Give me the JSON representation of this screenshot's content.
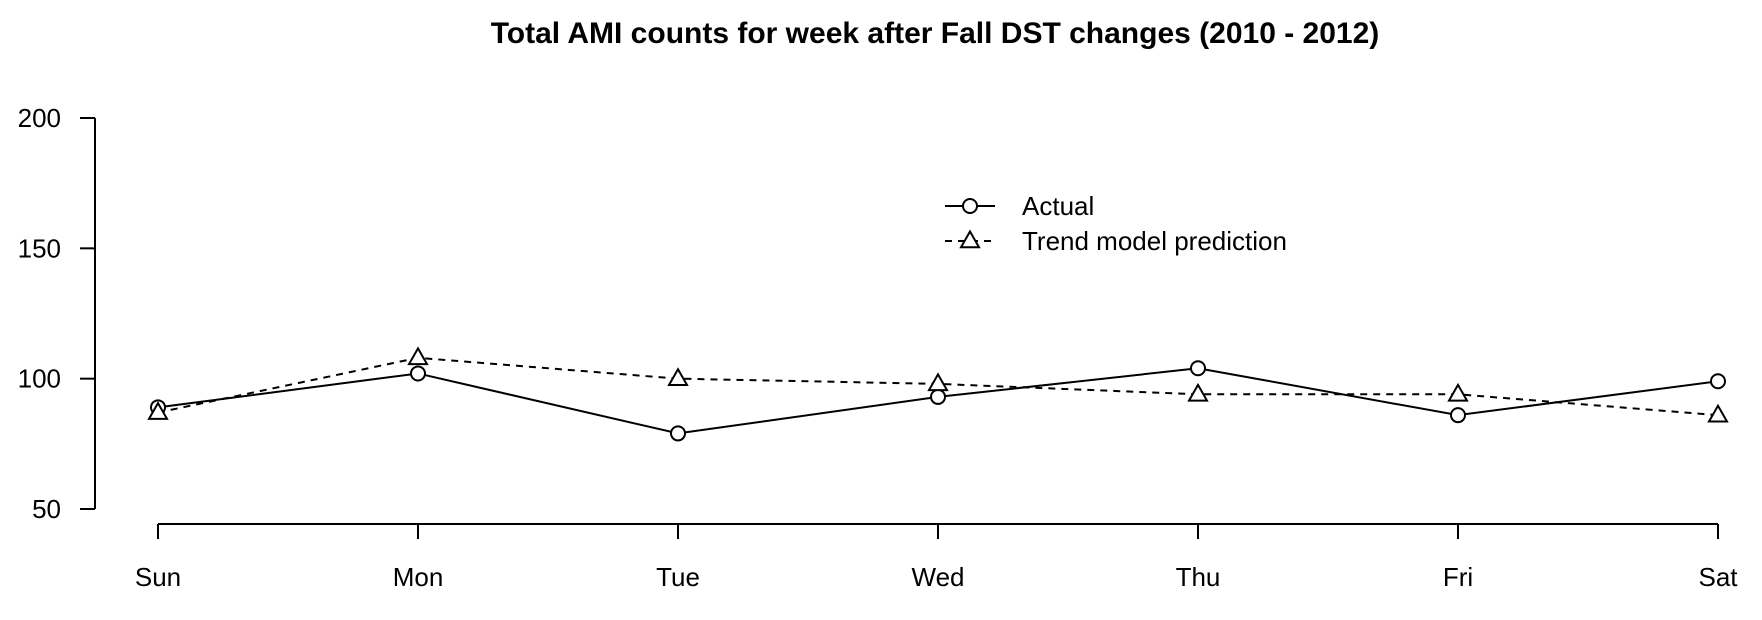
{
  "chart_data": {
    "type": "line",
    "title": "Total AMI counts for week after Fall DST changes (2010 - 2012)",
    "xlabel": "",
    "ylabel": "",
    "categories": [
      "Sun",
      "Mon",
      "Tue",
      "Wed",
      "Thu",
      "Fri",
      "Sat"
    ],
    "ylim": [
      50,
      200
    ],
    "y_ticks": [
      50,
      100,
      150,
      200
    ],
    "series": [
      {
        "name": "Actual",
        "values": [
          89,
          102,
          79,
          93,
          104,
          86,
          99
        ],
        "marker": "circle",
        "line_style": "solid"
      },
      {
        "name": "Trend model prediction",
        "values": [
          87,
          108,
          100,
          98,
          94,
          94,
          86
        ],
        "marker": "triangle",
        "line_style": "dashed"
      }
    ],
    "legend_position": "top-center",
    "grid": false,
    "colors": {
      "line": "#000000",
      "background": "#ffffff"
    }
  }
}
